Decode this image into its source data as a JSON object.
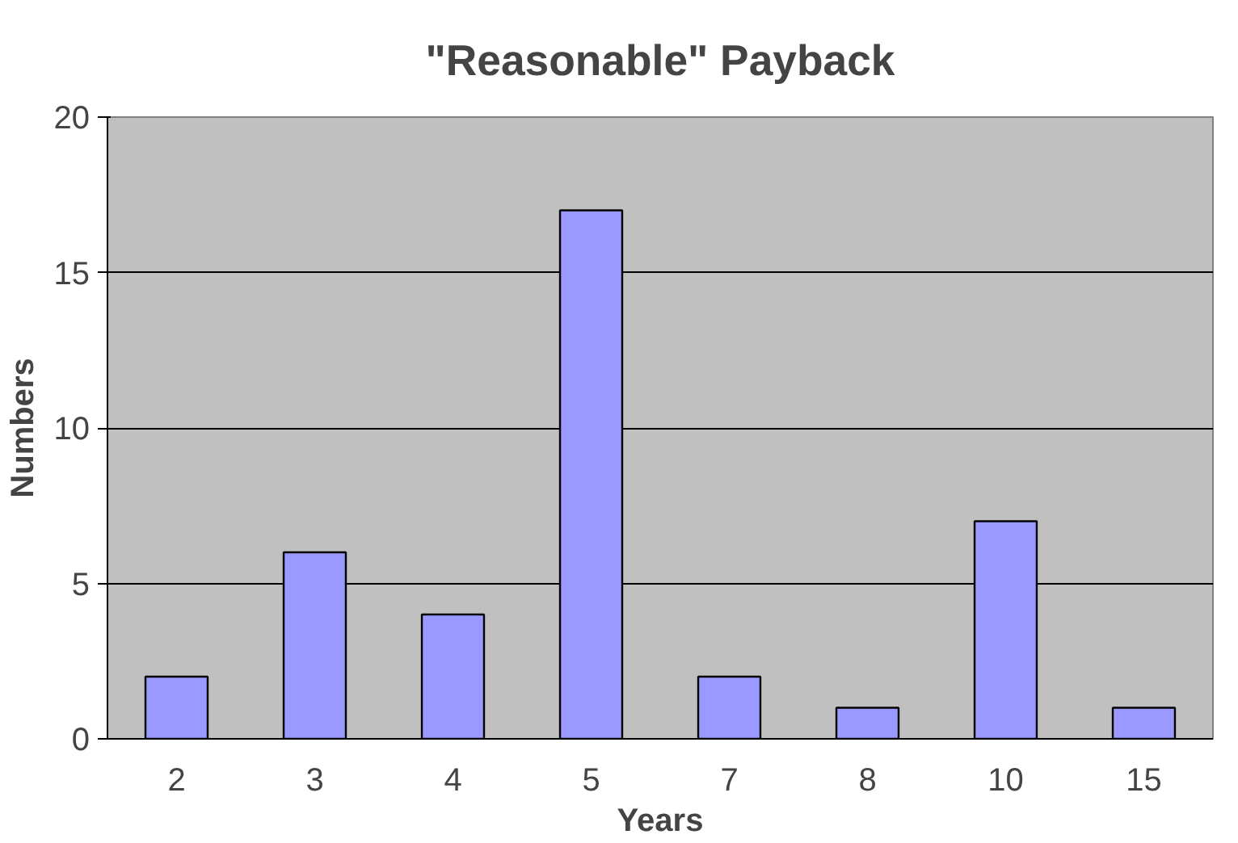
{
  "chart_data": {
    "type": "bar",
    "title": "\"Reasonable\" Payback",
    "xlabel": "Years",
    "ylabel": "Numbers",
    "categories": [
      "2",
      "3",
      "4",
      "5",
      "7",
      "8",
      "10",
      "15"
    ],
    "values": [
      2,
      6,
      4,
      17,
      2,
      1,
      7,
      1
    ],
    "color": "#9999ff",
    "ylim": [
      0,
      20
    ],
    "yticks": [
      0,
      5,
      10,
      15,
      20
    ],
    "grid": "y"
  }
}
